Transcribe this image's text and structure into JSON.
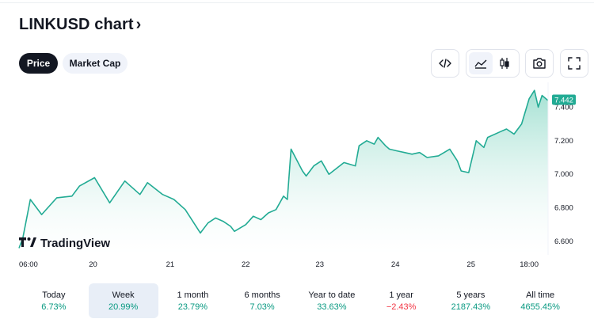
{
  "header": {
    "title": "LINKUSD chart",
    "title_chevron": "›"
  },
  "tabs": [
    {
      "label": "Price",
      "active": true
    },
    {
      "label": "Market Cap",
      "active": false
    }
  ],
  "toolbar": {
    "icons": [
      "embed-code-icon",
      "area-chart-icon",
      "candlestick-icon",
      "camera-icon",
      "fullscreen-icon"
    ],
    "active_chart_style": "area"
  },
  "chart": {
    "watermark": "TradingView",
    "last_price_label": "7.442",
    "colors": {
      "line": "#22ab94",
      "fill_top": "#9fdfd0",
      "fill_bottom": "#ffffff",
      "price_tag": "#22ab94"
    }
  },
  "chart_data": {
    "type": "area",
    "x_tick_labels": [
      "06:00",
      "20",
      "21",
      "22",
      "23",
      "24",
      "25",
      "18:00"
    ],
    "y_tick_labels": [
      "6.600",
      "6.800",
      "7.000",
      "7.200",
      "7.400"
    ],
    "ylim": [
      6.52,
      7.52
    ],
    "x": [
      0,
      0.05,
      0.15,
      0.3,
      0.5,
      0.7,
      0.8,
      1.0,
      1.2,
      1.4,
      1.6,
      1.7,
      1.9,
      2.05,
      2.2,
      2.4,
      2.5,
      2.6,
      2.7,
      2.8,
      2.85,
      3.0,
      3.1,
      3.2,
      3.3,
      3.4,
      3.5,
      3.55,
      3.6,
      3.75,
      3.8,
      3.9,
      4.0,
      4.1,
      4.3,
      4.45,
      4.5,
      4.6,
      4.7,
      4.75,
      4.85,
      4.9,
      5.0,
      5.1,
      5.2,
      5.3,
      5.4,
      5.55,
      5.7,
      5.8,
      5.85,
      5.95,
      6.05,
      6.15,
      6.2,
      6.35,
      6.45,
      6.55,
      6.65,
      6.75,
      6.82,
      6.87,
      6.92,
      7.0
    ],
    "y": [
      6.56,
      6.62,
      6.85,
      6.76,
      6.86,
      6.87,
      6.93,
      6.98,
      6.83,
      6.96,
      6.88,
      6.95,
      6.88,
      6.85,
      6.79,
      6.65,
      6.71,
      6.74,
      6.72,
      6.69,
      6.66,
      6.7,
      6.75,
      6.73,
      6.77,
      6.79,
      6.87,
      6.85,
      7.15,
      7.02,
      6.99,
      7.05,
      7.08,
      7.0,
      7.07,
      7.05,
      7.17,
      7.2,
      7.18,
      7.22,
      7.17,
      7.15,
      7.14,
      7.13,
      7.12,
      7.13,
      7.1,
      7.11,
      7.15,
      7.08,
      7.02,
      7.01,
      7.2,
      7.16,
      7.22,
      7.25,
      7.27,
      7.24,
      7.3,
      7.45,
      7.5,
      7.4,
      7.47,
      7.44
    ],
    "last_value": 7.442
  },
  "ranges": [
    {
      "label": "Today",
      "value": "6.73%",
      "trend": "pos",
      "active": false
    },
    {
      "label": "Week",
      "value": "20.99%",
      "trend": "pos",
      "active": true
    },
    {
      "label": "1 month",
      "value": "23.79%",
      "trend": "pos",
      "active": false
    },
    {
      "label": "6 months",
      "value": "7.03%",
      "trend": "pos",
      "active": false
    },
    {
      "label": "Year to date",
      "value": "33.63%",
      "trend": "pos",
      "active": false
    },
    {
      "label": "1 year",
      "value": "−2.43%",
      "trend": "neg",
      "active": false
    },
    {
      "label": "5 years",
      "value": "2187.43%",
      "trend": "pos",
      "active": false
    },
    {
      "label": "All time",
      "value": "4655.45%",
      "trend": "pos",
      "active": false
    }
  ]
}
